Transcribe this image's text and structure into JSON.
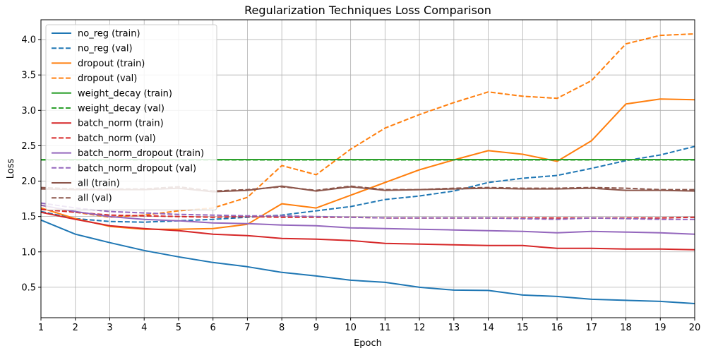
{
  "chart_data": {
    "type": "line",
    "title": "Regularization Techniques Loss Comparison",
    "xlabel": "Epoch",
    "ylabel": "Loss",
    "xlim": [
      1,
      20
    ],
    "ylim": [
      0.07,
      4.28
    ],
    "xticks": [
      1,
      2,
      3,
      4,
      5,
      6,
      7,
      8,
      9,
      10,
      11,
      12,
      13,
      14,
      15,
      16,
      17,
      18,
      19,
      20
    ],
    "yticks": [
      0.5,
      1.0,
      1.5,
      2.0,
      2.5,
      3.0,
      3.5,
      4.0
    ],
    "ytick_labels": [
      "0.5",
      "1.0",
      "1.5",
      "2.0",
      "2.5",
      "3.0",
      "3.5",
      "4.0"
    ],
    "grid": true,
    "legend_position": "upper-left",
    "x": [
      1,
      2,
      3,
      4,
      5,
      6,
      7,
      8,
      9,
      10,
      11,
      12,
      13,
      14,
      15,
      16,
      17,
      18,
      19,
      20
    ],
    "series": [
      {
        "name": "no_reg (train)",
        "color": "#1f77b4",
        "style": "solid",
        "values": [
          1.45,
          1.25,
          1.13,
          1.02,
          0.93,
          0.85,
          0.79,
          0.71,
          0.66,
          0.6,
          0.57,
          0.5,
          0.46,
          0.455,
          0.39,
          0.37,
          0.33,
          0.315,
          0.3,
          0.27
        ]
      },
      {
        "name": "no_reg (val)",
        "color": "#1f77b4",
        "style": "dashed",
        "values": [
          1.57,
          1.47,
          1.43,
          1.42,
          1.44,
          1.46,
          1.49,
          1.52,
          1.58,
          1.64,
          1.74,
          1.79,
          1.86,
          1.98,
          2.04,
          2.08,
          2.18,
          2.29,
          2.37,
          2.49
        ]
      },
      {
        "name": "dropout (train)",
        "color": "#ff7f0e",
        "style": "solid",
        "values": [
          1.62,
          1.47,
          1.36,
          1.32,
          1.32,
          1.33,
          1.39,
          1.68,
          1.62,
          1.8,
          1.98,
          2.16,
          2.3,
          2.43,
          2.38,
          2.28,
          2.57,
          3.09,
          3.16,
          3.15
        ]
      },
      {
        "name": "dropout (val)",
        "color": "#ff7f0e",
        "style": "dashed",
        "values": [
          1.66,
          1.56,
          1.49,
          1.52,
          1.58,
          1.62,
          1.77,
          2.22,
          2.09,
          2.45,
          2.75,
          2.94,
          3.11,
          3.26,
          3.2,
          3.17,
          3.42,
          3.94,
          4.06,
          4.08
        ]
      },
      {
        "name": "weight_decay (train)",
        "color": "#2ca02c",
        "style": "solid",
        "values": [
          2.305,
          2.305,
          2.305,
          2.305,
          2.305,
          2.305,
          2.305,
          2.305,
          2.305,
          2.305,
          2.305,
          2.305,
          2.305,
          2.305,
          2.305,
          2.305,
          2.305,
          2.305,
          2.305,
          2.305
        ]
      },
      {
        "name": "weight_decay (val)",
        "color": "#2ca02c",
        "style": "dashed",
        "values": [
          2.3,
          2.3,
          2.3,
          2.3,
          2.3,
          2.3,
          2.3,
          2.3,
          2.3,
          2.3,
          2.3,
          2.3,
          2.3,
          2.3,
          2.3,
          2.3,
          2.3,
          2.3,
          2.3,
          2.3
        ]
      },
      {
        "name": "batch_norm (train)",
        "color": "#d62728",
        "style": "solid",
        "values": [
          1.56,
          1.46,
          1.37,
          1.33,
          1.3,
          1.25,
          1.23,
          1.19,
          1.18,
          1.16,
          1.12,
          1.11,
          1.1,
          1.09,
          1.09,
          1.05,
          1.05,
          1.04,
          1.04,
          1.03
        ]
      },
      {
        "name": "batch_norm (val)",
        "color": "#d62728",
        "style": "dashed",
        "values": [
          1.6,
          1.56,
          1.52,
          1.51,
          1.5,
          1.49,
          1.5,
          1.49,
          1.49,
          1.49,
          1.48,
          1.48,
          1.48,
          1.48,
          1.48,
          1.48,
          1.48,
          1.48,
          1.48,
          1.49
        ]
      },
      {
        "name": "batch_norm_dropout (train)",
        "color": "#9467bd",
        "style": "solid",
        "values": [
          1.66,
          1.57,
          1.5,
          1.46,
          1.44,
          1.41,
          1.4,
          1.38,
          1.37,
          1.34,
          1.33,
          1.32,
          1.31,
          1.3,
          1.29,
          1.27,
          1.29,
          1.28,
          1.27,
          1.25
        ]
      },
      {
        "name": "batch_norm_dropout (val)",
        "color": "#9467bd",
        "style": "dashed",
        "values": [
          1.69,
          1.62,
          1.57,
          1.55,
          1.53,
          1.52,
          1.51,
          1.51,
          1.5,
          1.49,
          1.48,
          1.48,
          1.48,
          1.48,
          1.47,
          1.46,
          1.48,
          1.47,
          1.46,
          1.46
        ]
      },
      {
        "name": "all (train)",
        "color": "#8c564b",
        "style": "solid",
        "values": [
          1.89,
          1.88,
          1.88,
          1.88,
          1.9,
          1.85,
          1.87,
          1.93,
          1.86,
          1.92,
          1.87,
          1.88,
          1.89,
          1.9,
          1.89,
          1.89,
          1.9,
          1.87,
          1.87,
          1.86
        ]
      },
      {
        "name": "all (val)",
        "color": "#8c564b",
        "style": "dashed",
        "values": [
          1.91,
          1.89,
          1.89,
          1.89,
          1.92,
          1.86,
          1.88,
          1.92,
          1.87,
          1.93,
          1.88,
          1.88,
          1.9,
          1.91,
          1.9,
          1.9,
          1.91,
          1.9,
          1.88,
          1.88
        ]
      }
    ]
  }
}
